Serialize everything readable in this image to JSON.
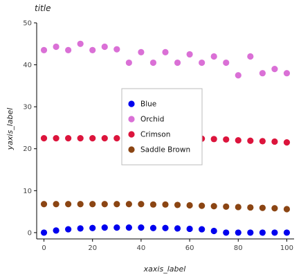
{
  "chart_data": {
    "type": "scatter",
    "title": "title",
    "xlabel": "xaxis_label",
    "ylabel": "yaxis_label",
    "xlim": [
      -3,
      103
    ],
    "ylim": [
      -1.5,
      50
    ],
    "xticks": [
      0,
      20,
      40,
      60,
      80,
      100
    ],
    "yticks": [
      0,
      10,
      20,
      30,
      40,
      50
    ],
    "grid": false,
    "legend_position": "center",
    "x": [
      0,
      5,
      10,
      15,
      20,
      25,
      30,
      35,
      40,
      45,
      50,
      55,
      60,
      65,
      70,
      75,
      80,
      85,
      90,
      95,
      100
    ],
    "series": [
      {
        "name": "Blue",
        "color": "#0000ee",
        "values": [
          0.0,
          0.5,
          0.8,
          1.0,
          1.1,
          1.2,
          1.2,
          1.2,
          1.2,
          1.1,
          1.1,
          1.0,
          0.9,
          0.8,
          0.4,
          0.0,
          0.0,
          0.0,
          0.0,
          0.0,
          0.0
        ]
      },
      {
        "name": "Orchid",
        "color": "#da70d6",
        "values": [
          43.5,
          44.3,
          43.5,
          45.0,
          43.5,
          44.3,
          43.7,
          40.5,
          43.0,
          40.5,
          43.0,
          40.5,
          42.5,
          40.5,
          42.0,
          40.5,
          37.5,
          42.0,
          38.0,
          39.0,
          38.0
        ]
      },
      {
        "name": "Crimson",
        "color": "#dc143c",
        "values": [
          22.5,
          22.5,
          22.5,
          22.5,
          22.5,
          22.5,
          22.5,
          22.5,
          22.5,
          22.5,
          22.5,
          22.5,
          22.5,
          22.4,
          22.3,
          22.2,
          22.0,
          21.9,
          21.8,
          21.7,
          21.5
        ]
      },
      {
        "name": "Saddle Brown",
        "color": "#8b4513",
        "values": [
          6.8,
          6.8,
          6.8,
          6.8,
          6.8,
          6.8,
          6.8,
          6.8,
          6.8,
          6.7,
          6.7,
          6.6,
          6.5,
          6.4,
          6.3,
          6.2,
          6.1,
          6.0,
          5.9,
          5.8,
          5.6
        ]
      }
    ]
  }
}
